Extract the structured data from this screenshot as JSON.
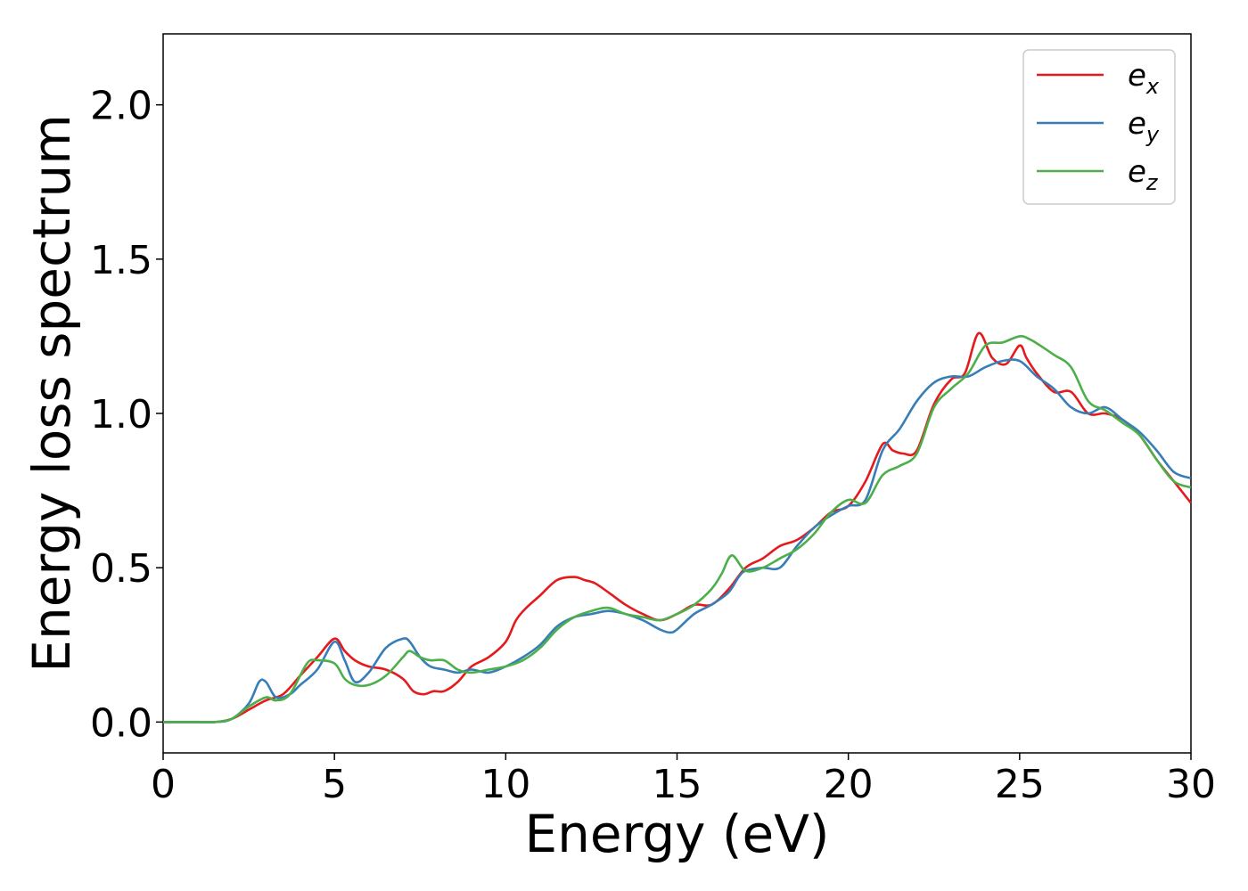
{
  "chart_data": {
    "type": "line",
    "xlabel": "Energy (eV)",
    "ylabel": "Energy loss spectrum",
    "xlim": [
      0,
      30
    ],
    "ylim": [
      -0.1,
      2.23
    ],
    "xticks": [
      0,
      5,
      10,
      15,
      20,
      25,
      30
    ],
    "xtick_labels": [
      "0",
      "5",
      "10",
      "15",
      "20",
      "25",
      "30"
    ],
    "yticks": [
      0.0,
      0.5,
      1.0,
      1.5,
      2.0
    ],
    "ytick_labels": [
      "0.0",
      "0.5",
      "1.0",
      "1.5",
      "2.0"
    ],
    "grid": false,
    "legend_position": "top-right",
    "series": [
      {
        "name": "e_x",
        "legend_base": "e",
        "legend_sub": "x",
        "color": "#e41a1c",
        "x": [
          0,
          1,
          1.5,
          2,
          2.5,
          3,
          3.5,
          4,
          4.5,
          5,
          5.3,
          5.6,
          6,
          6.5,
          7,
          7.3,
          7.6,
          7.9,
          8.2,
          8.6,
          9,
          9.5,
          10,
          10.3,
          10.6,
          11,
          11.5,
          12,
          12.3,
          12.6,
          13,
          13.5,
          14,
          14.5,
          15,
          15.5,
          16,
          16.5,
          17,
          17.5,
          18,
          18.5,
          19,
          19.5,
          20,
          20.5,
          21,
          21.3,
          21.6,
          22,
          22.5,
          23,
          23.4,
          23.8,
          24.2,
          24.6,
          25,
          25.2,
          25.5,
          26,
          26.5,
          27,
          27.5,
          28,
          28.5,
          29,
          29.5,
          30
        ],
        "y": [
          0.0,
          0.0,
          0.0,
          0.01,
          0.04,
          0.07,
          0.09,
          0.15,
          0.21,
          0.27,
          0.23,
          0.2,
          0.18,
          0.17,
          0.14,
          0.1,
          0.09,
          0.1,
          0.1,
          0.13,
          0.18,
          0.21,
          0.26,
          0.33,
          0.37,
          0.41,
          0.46,
          0.47,
          0.46,
          0.45,
          0.42,
          0.38,
          0.35,
          0.33,
          0.35,
          0.38,
          0.38,
          0.43,
          0.5,
          0.53,
          0.57,
          0.59,
          0.63,
          0.68,
          0.7,
          0.78,
          0.9,
          0.88,
          0.87,
          0.88,
          1.03,
          1.11,
          1.13,
          1.26,
          1.18,
          1.16,
          1.22,
          1.18,
          1.13,
          1.07,
          1.07,
          1.0,
          1.0,
          0.98,
          0.93,
          0.85,
          0.78,
          0.71
        ]
      },
      {
        "name": "e_y",
        "legend_base": "e",
        "legend_sub": "y",
        "color": "#377eb8",
        "x": [
          0,
          1,
          1.5,
          2,
          2.5,
          2.8,
          3,
          3.3,
          3.7,
          4,
          4.5,
          5,
          5.3,
          5.6,
          6,
          6.5,
          7,
          7.2,
          7.5,
          7.8,
          8.2,
          8.6,
          9,
          9.5,
          10,
          10.5,
          11,
          11.5,
          12,
          12.5,
          13,
          13.5,
          14,
          14.5,
          14.8,
          15,
          15.5,
          16,
          16.5,
          16.8,
          17,
          17.5,
          18,
          18.5,
          19,
          19.5,
          20,
          20.5,
          21,
          21.5,
          22,
          22.5,
          23,
          23.5,
          24,
          24.5,
          25,
          25.5,
          26,
          26.5,
          27,
          27.5,
          28,
          28.5,
          29,
          29.5,
          30
        ],
        "y": [
          0.0,
          0.0,
          0.0,
          0.01,
          0.06,
          0.13,
          0.13,
          0.08,
          0.09,
          0.12,
          0.17,
          0.26,
          0.2,
          0.13,
          0.16,
          0.24,
          0.27,
          0.26,
          0.21,
          0.18,
          0.17,
          0.16,
          0.17,
          0.16,
          0.18,
          0.21,
          0.25,
          0.31,
          0.34,
          0.35,
          0.36,
          0.35,
          0.33,
          0.3,
          0.29,
          0.3,
          0.35,
          0.38,
          0.42,
          0.47,
          0.49,
          0.5,
          0.5,
          0.57,
          0.63,
          0.67,
          0.7,
          0.72,
          0.88,
          0.95,
          1.04,
          1.1,
          1.12,
          1.12,
          1.15,
          1.17,
          1.17,
          1.12,
          1.08,
          1.02,
          1.0,
          1.02,
          0.98,
          0.94,
          0.88,
          0.81,
          0.79
        ]
      },
      {
        "name": "e_z",
        "legend_base": "e",
        "legend_sub": "z",
        "color": "#4daf4a",
        "x": [
          0,
          1,
          1.5,
          2,
          2.5,
          3,
          3.3,
          3.7,
          4.2,
          4.5,
          5,
          5.3,
          5.6,
          6,
          6.5,
          7,
          7.2,
          7.5,
          7.8,
          8.2,
          8.6,
          9,
          9.5,
          10,
          10.5,
          11,
          11.5,
          12,
          12.5,
          13,
          13.5,
          14,
          14.5,
          15,
          15.5,
          16,
          16.3,
          16.6,
          17,
          17.5,
          18,
          18.5,
          19,
          19.5,
          20,
          20.5,
          21,
          21.5,
          22,
          22.5,
          23,
          23.5,
          24,
          24.5,
          25,
          25.3,
          25.6,
          26,
          26.5,
          27,
          27.5,
          28,
          28.5,
          29,
          29.5,
          30
        ],
        "y": [
          0.0,
          0.0,
          0.0,
          0.01,
          0.05,
          0.08,
          0.07,
          0.09,
          0.19,
          0.2,
          0.19,
          0.14,
          0.12,
          0.12,
          0.15,
          0.21,
          0.23,
          0.21,
          0.2,
          0.2,
          0.17,
          0.16,
          0.17,
          0.18,
          0.2,
          0.24,
          0.3,
          0.34,
          0.36,
          0.37,
          0.35,
          0.34,
          0.33,
          0.35,
          0.38,
          0.43,
          0.48,
          0.54,
          0.49,
          0.5,
          0.53,
          0.56,
          0.61,
          0.68,
          0.72,
          0.71,
          0.8,
          0.83,
          0.87,
          1.02,
          1.08,
          1.13,
          1.22,
          1.23,
          1.25,
          1.24,
          1.22,
          1.19,
          1.15,
          1.04,
          1.01,
          0.97,
          0.93,
          0.85,
          0.78,
          0.76
        ]
      }
    ]
  }
}
